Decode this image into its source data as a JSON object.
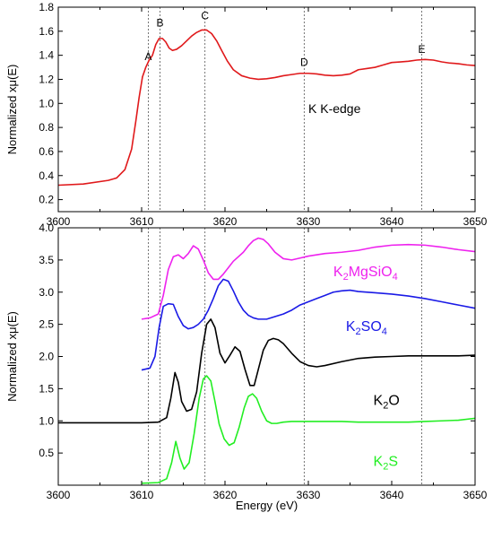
{
  "chart_data": [
    {
      "type": "line",
      "panel": "top",
      "ylabel": "Normalized xμ(E)",
      "xlim": [
        3600,
        3650
      ],
      "ylim": [
        0.1,
        1.8
      ],
      "xticks": [
        3600,
        3610,
        3620,
        3630,
        3640,
        3650
      ],
      "yticks": [
        0.2,
        0.4,
        0.6,
        0.8,
        1.0,
        1.2,
        1.4,
        1.6,
        1.8
      ],
      "annotation": "K K-edge",
      "markers": [
        {
          "label": "A",
          "x": 3610.8
        },
        {
          "label": "B",
          "x": 3612.2
        },
        {
          "label": "C",
          "x": 3617.6
        },
        {
          "label": "D",
          "x": 3629.5
        },
        {
          "label": "E",
          "x": 3643.6
        }
      ],
      "series": [
        {
          "color": "#e0191b",
          "x": [
            3600,
            3603,
            3606,
            3607,
            3608,
            3608.8,
            3609.3,
            3609.7,
            3610.1,
            3610.5,
            3610.9,
            3611.3,
            3611.7,
            3612.1,
            3612.5,
            3612.9,
            3613.3,
            3613.7,
            3614.2,
            3614.8,
            3615.4,
            3616,
            3616.6,
            3617.2,
            3617.8,
            3618.4,
            3619,
            3619.6,
            3620.3,
            3621,
            3622,
            3623,
            3624,
            3625,
            3626,
            3627,
            3628,
            3629,
            3630,
            3631,
            3632,
            3633,
            3634,
            3635,
            3636,
            3637,
            3638,
            3639,
            3640,
            3641,
            3642,
            3643,
            3644,
            3645,
            3646,
            3647,
            3648,
            3649,
            3650
          ],
          "y": [
            0.32,
            0.33,
            0.36,
            0.38,
            0.45,
            0.62,
            0.85,
            1.05,
            1.22,
            1.3,
            1.36,
            1.4,
            1.49,
            1.54,
            1.54,
            1.51,
            1.46,
            1.44,
            1.45,
            1.48,
            1.52,
            1.56,
            1.59,
            1.61,
            1.61,
            1.58,
            1.52,
            1.44,
            1.35,
            1.28,
            1.23,
            1.21,
            1.2,
            1.205,
            1.215,
            1.23,
            1.24,
            1.25,
            1.25,
            1.245,
            1.235,
            1.23,
            1.235,
            1.245,
            1.28,
            1.29,
            1.3,
            1.32,
            1.34,
            1.345,
            1.35,
            1.36,
            1.365,
            1.36,
            1.345,
            1.335,
            1.33,
            1.32,
            1.315
          ]
        }
      ]
    },
    {
      "type": "line",
      "panel": "bottom",
      "xlabel": "Energy (eV)",
      "ylabel": "Normalized xμ(E)",
      "xlim": [
        3600,
        3650
      ],
      "ylim": [
        0,
        4.0
      ],
      "xticks": [
        3600,
        3610,
        3620,
        3630,
        3640,
        3650
      ],
      "yticks": [
        0.5,
        1.0,
        1.5,
        2.0,
        2.5,
        3.0,
        3.5,
        4.0
      ],
      "markers": [
        3610.8,
        3612.2,
        3617.6,
        3629.5,
        3643.6
      ],
      "series": [
        {
          "name_base": "K",
          "name_sub": "2",
          "name_mid": "MgSiO",
          "name_sub2": "4",
          "color": "#ee22ee",
          "x": [
            3610,
            3611,
            3612,
            3612.6,
            3613.2,
            3613.8,
            3614.4,
            3615,
            3615.6,
            3616.2,
            3616.8,
            3617.4,
            3618,
            3618.6,
            3619.2,
            3619.8,
            3620.4,
            3621,
            3621.6,
            3622.2,
            3622.8,
            3623.4,
            3624,
            3624.6,
            3625.2,
            3626,
            3627,
            3628,
            3629,
            3630,
            3632,
            3634,
            3636,
            3638,
            3640,
            3642,
            3644,
            3646,
            3648,
            3650
          ],
          "y": [
            2.58,
            2.6,
            2.66,
            2.95,
            3.35,
            3.55,
            3.58,
            3.52,
            3.6,
            3.72,
            3.67,
            3.5,
            3.3,
            3.2,
            3.2,
            3.28,
            3.38,
            3.48,
            3.55,
            3.62,
            3.72,
            3.8,
            3.84,
            3.82,
            3.75,
            3.62,
            3.52,
            3.5,
            3.53,
            3.56,
            3.6,
            3.62,
            3.65,
            3.7,
            3.73,
            3.74,
            3.73,
            3.7,
            3.66,
            3.63
          ]
        },
        {
          "name_base": "K",
          "name_sub": "2",
          "name_mid": "SO",
          "name_sub2": "4",
          "color": "#1a1ae6",
          "x": [
            3610,
            3611,
            3611.6,
            3612.1,
            3612.6,
            3613.2,
            3613.8,
            3614.4,
            3615,
            3615.6,
            3616.2,
            3616.8,
            3617.4,
            3618,
            3618.6,
            3619.2,
            3619.8,
            3620.4,
            3621,
            3621.6,
            3622.2,
            3622.8,
            3623.4,
            3624,
            3625,
            3626,
            3627,
            3628,
            3629,
            3630,
            3631,
            3632,
            3633,
            3634,
            3635,
            3636,
            3638,
            3640,
            3642,
            3644,
            3646,
            3648,
            3650
          ],
          "y": [
            1.79,
            1.82,
            2.0,
            2.45,
            2.78,
            2.82,
            2.81,
            2.62,
            2.48,
            2.43,
            2.45,
            2.5,
            2.58,
            2.72,
            2.9,
            3.1,
            3.2,
            3.17,
            3.02,
            2.85,
            2.72,
            2.64,
            2.6,
            2.58,
            2.58,
            2.62,
            2.66,
            2.72,
            2.8,
            2.85,
            2.9,
            2.95,
            3.0,
            3.02,
            3.03,
            3.01,
            2.99,
            2.97,
            2.94,
            2.9,
            2.85,
            2.8,
            2.75
          ]
        },
        {
          "name_base": "K",
          "name_sub": "2",
          "name_mid": "O",
          "name_sub2": "",
          "color": "#000000",
          "x": [
            3600,
            3605,
            3610,
            3612,
            3613,
            3613.5,
            3614,
            3614.4,
            3614.8,
            3615.4,
            3616,
            3616.6,
            3617.2,
            3617.8,
            3618.3,
            3618.8,
            3619.4,
            3620,
            3620.6,
            3621.2,
            3621.8,
            3622.4,
            3623,
            3623.5,
            3624,
            3624.6,
            3625.2,
            3625.8,
            3626.4,
            3627,
            3628,
            3629,
            3630,
            3631,
            3632,
            3634,
            3636,
            3638,
            3640,
            3642,
            3644,
            3646,
            3648,
            3650
          ],
          "y": [
            0.97,
            0.97,
            0.97,
            0.98,
            1.05,
            1.35,
            1.75,
            1.6,
            1.3,
            1.15,
            1.18,
            1.45,
            2.05,
            2.5,
            2.58,
            2.45,
            2.05,
            1.9,
            2.02,
            2.15,
            2.08,
            1.8,
            1.55,
            1.55,
            1.8,
            2.1,
            2.25,
            2.28,
            2.26,
            2.2,
            2.05,
            1.92,
            1.86,
            1.84,
            1.86,
            1.92,
            1.97,
            1.99,
            2.0,
            2.01,
            2.01,
            2.01,
            2.01,
            2.02
          ]
        },
        {
          "name_base": "K",
          "name_sub": "2",
          "name_mid": "S",
          "name_sub2": "",
          "color": "#22ee22",
          "x": [
            3610,
            3612,
            3613,
            3613.6,
            3614.1,
            3614.6,
            3615.1,
            3615.7,
            3616.3,
            3616.9,
            3617.4,
            3617.8,
            3618.3,
            3618.8,
            3619.3,
            3619.9,
            3620.5,
            3621.1,
            3621.7,
            3622.3,
            3622.8,
            3623.3,
            3623.8,
            3624.4,
            3625,
            3625.6,
            3626.2,
            3627,
            3628,
            3630,
            3632,
            3634,
            3636,
            3638,
            3640,
            3642,
            3644,
            3646,
            3648,
            3650
          ],
          "y": [
            0.03,
            0.04,
            0.1,
            0.35,
            0.68,
            0.42,
            0.25,
            0.35,
            0.8,
            1.35,
            1.65,
            1.7,
            1.62,
            1.3,
            0.95,
            0.72,
            0.62,
            0.66,
            0.9,
            1.2,
            1.38,
            1.42,
            1.35,
            1.15,
            1.0,
            0.96,
            0.96,
            0.98,
            0.99,
            0.99,
            0.99,
            0.99,
            0.98,
            0.98,
            0.98,
            0.98,
            0.99,
            1.0,
            1.01,
            1.04
          ]
        }
      ]
    }
  ]
}
